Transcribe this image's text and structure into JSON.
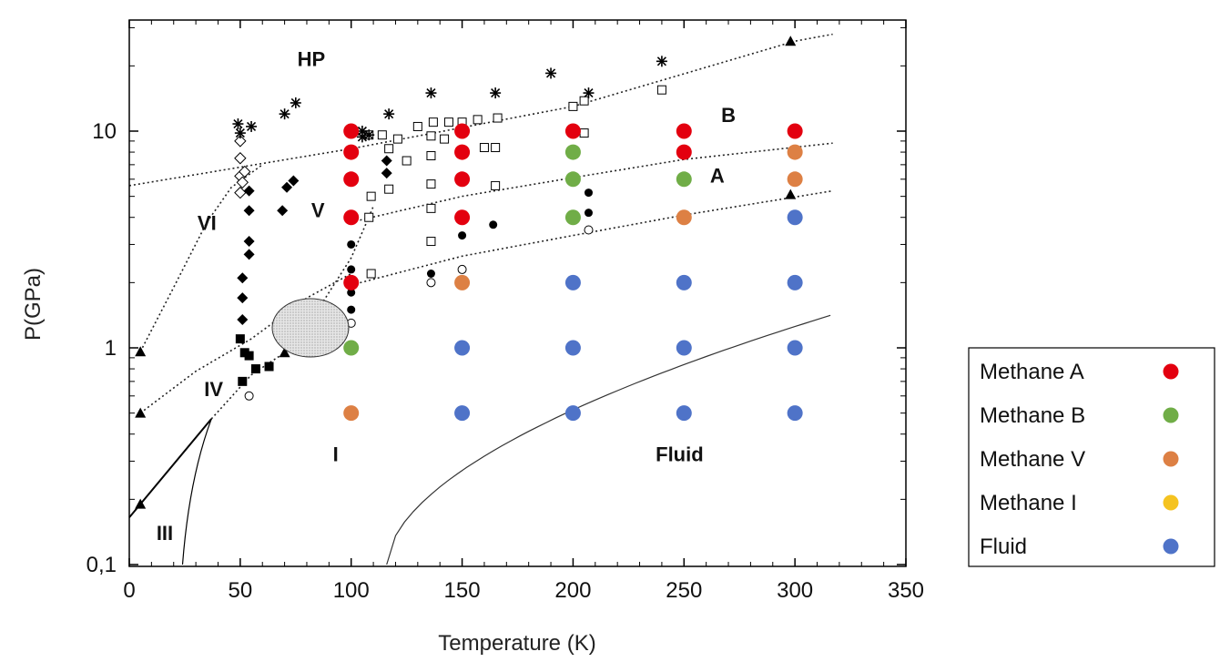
{
  "chart_data": {
    "type": "scatter",
    "title": "",
    "xlabel": "Temperature (K)",
    "ylabel": "P(GPa)",
    "xlim": [
      0,
      350
    ],
    "ylim": [
      0.1,
      30
    ],
    "y_scale": "log",
    "x_ticks": [
      0,
      50,
      100,
      150,
      200,
      250,
      300,
      350
    ],
    "x_tick_labels": [
      "0",
      "50",
      "100",
      "150",
      "200",
      "250",
      "300",
      "350"
    ],
    "y_ticks": [
      0.1,
      1,
      10
    ],
    "y_tick_labels": [
      "0,1",
      "1",
      "10"
    ],
    "grid": false,
    "legend_position": "right",
    "region_labels": [
      {
        "text": "HP",
        "x": 82,
        "y": 20
      },
      {
        "text": "B",
        "x": 270,
        "y": 11
      },
      {
        "text": "A",
        "x": 265,
        "y": 5.8
      },
      {
        "text": "VI",
        "x": 35,
        "y": 3.5
      },
      {
        "text": "V",
        "x": 85,
        "y": 4
      },
      {
        "text": "IV",
        "x": 38,
        "y": 0.6
      },
      {
        "text": "I",
        "x": 93,
        "y": 0.3
      },
      {
        "text": "III",
        "x": 16,
        "y": 0.13
      },
      {
        "text": "Fluid",
        "x": 248,
        "y": 0.3
      }
    ],
    "series": [
      {
        "name": "Methane A",
        "color": "#e3000f",
        "points": [
          [
            100,
            10
          ],
          [
            100,
            8
          ],
          [
            100,
            6
          ],
          [
            100,
            4
          ],
          [
            100,
            2
          ],
          [
            150,
            10
          ],
          [
            150,
            8
          ],
          [
            150,
            6
          ],
          [
            150,
            4
          ],
          [
            200,
            10
          ],
          [
            250,
            10
          ],
          [
            250,
            8
          ],
          [
            300,
            10
          ]
        ]
      },
      {
        "name": "Methane B",
        "color": "#70ad47",
        "points": [
          [
            100,
            1
          ],
          [
            200,
            8
          ],
          [
            200,
            6
          ],
          [
            200,
            4
          ],
          [
            250,
            6
          ]
        ]
      },
      {
        "name": "Methane V",
        "color": "#dd8044",
        "points": [
          [
            100,
            0.5
          ],
          [
            150,
            2
          ],
          [
            250,
            4
          ],
          [
            300,
            8
          ],
          [
            300,
            6
          ]
        ]
      },
      {
        "name": "Methane I",
        "color": "#f5c320",
        "points": []
      },
      {
        "name": "Fluid",
        "color": "#4f73c8",
        "points": [
          [
            150,
            1
          ],
          [
            150,
            0.5
          ],
          [
            200,
            2
          ],
          [
            200,
            1
          ],
          [
            200,
            0.5
          ],
          [
            250,
            2
          ],
          [
            250,
            1
          ],
          [
            250,
            0.5
          ],
          [
            300,
            4
          ],
          [
            300,
            2
          ],
          [
            300,
            1
          ],
          [
            300,
            0.5
          ]
        ]
      }
    ],
    "reference_points": {
      "open_diamond": [
        [
          50,
          9
        ],
        [
          50,
          7.5
        ],
        [
          50,
          6.2
        ],
        [
          50,
          5.2
        ],
        [
          52,
          6.5
        ],
        [
          51,
          5.8
        ]
      ],
      "filled_diamond": [
        [
          54,
          5.3
        ],
        [
          54,
          4.3
        ],
        [
          54,
          3.1
        ],
        [
          54,
          2.7
        ],
        [
          51,
          2.1
        ],
        [
          51,
          1.7
        ],
        [
          51,
          1.35
        ],
        [
          69,
          4.3
        ],
        [
          71,
          5.5
        ],
        [
          74,
          5.9
        ],
        [
          116,
          7.3
        ],
        [
          116,
          6.4
        ]
      ],
      "asterisk": [
        [
          49,
          10.8
        ],
        [
          55,
          10.5
        ],
        [
          50,
          9.8
        ],
        [
          70,
          12
        ],
        [
          75,
          13.5
        ],
        [
          105,
          10
        ],
        [
          105,
          9.4
        ],
        [
          117,
          12
        ],
        [
          136,
          15
        ],
        [
          165,
          15
        ],
        [
          190,
          18.5
        ],
        [
          207,
          15
        ],
        [
          240,
          21
        ],
        [
          108,
          9.6
        ]
      ],
      "open_square": [
        [
          108,
          9.6
        ],
        [
          114,
          9.6
        ],
        [
          117,
          8.3
        ],
        [
          121,
          9.2
        ],
        [
          125,
          7.3
        ],
        [
          130,
          10.5
        ],
        [
          137,
          11
        ],
        [
          144,
          11
        ],
        [
          150,
          11
        ],
        [
          157,
          11.3
        ],
        [
          166,
          11.5
        ],
        [
          136,
          9.5
        ],
        [
          142,
          9.2
        ],
        [
          136,
          7.7
        ],
        [
          136,
          5.7
        ],
        [
          136,
          4.4
        ],
        [
          136,
          3.1
        ],
        [
          165,
          8.4
        ],
        [
          160,
          8.4
        ],
        [
          165,
          5.6
        ],
        [
          117,
          5.4
        ],
        [
          109,
          5
        ],
        [
          108,
          4
        ],
        [
          109,
          2.2
        ],
        [
          200,
          13
        ],
        [
          205,
          13.8
        ],
        [
          205,
          9.8
        ],
        [
          240,
          15.5
        ]
      ],
      "filled_circle": [
        [
          100,
          3
        ],
        [
          100,
          2.3
        ],
        [
          100,
          1.8
        ],
        [
          100,
          1.5
        ],
        [
          136,
          2.2
        ],
        [
          150,
          3.3
        ],
        [
          164,
          3.7
        ],
        [
          207,
          5.2
        ],
        [
          207,
          4.2
        ]
      ],
      "open_circle": [
        [
          100,
          1.3
        ],
        [
          136,
          2
        ],
        [
          150,
          2.3
        ],
        [
          207,
          3.5
        ],
        [
          54,
          0.6
        ]
      ],
      "filled_square": [
        [
          50,
          1.1
        ],
        [
          52,
          0.95
        ],
        [
          54,
          0.92
        ],
        [
          57,
          0.8
        ],
        [
          63,
          0.82
        ],
        [
          51,
          0.7
        ]
      ],
      "filled_triangle": [
        [
          5,
          0.96
        ],
        [
          5,
          0.5
        ],
        [
          5,
          0.19
        ],
        [
          70,
          0.95
        ],
        [
          298,
          26
        ],
        [
          298,
          5.1
        ]
      ]
    },
    "phase_boundaries": [
      {
        "points": [
          [
            0,
            5.6
          ],
          [
            100,
            8.3
          ],
          [
            200,
            13
          ],
          [
            300,
            26
          ],
          [
            317,
            28
          ]
        ]
      },
      {
        "points": [
          [
            100,
            3.8
          ],
          [
            150,
            5
          ],
          [
            200,
            6.1
          ],
          [
            250,
            7.4
          ],
          [
            317,
            8.8
          ]
        ]
      },
      {
        "points": [
          [
            100,
            1.95
          ],
          [
            150,
            2.65
          ],
          [
            200,
            3.3
          ],
          [
            250,
            4.1
          ],
          [
            317,
            5.3
          ]
        ]
      },
      {
        "points": [
          [
            5,
            0.96
          ],
          [
            20,
            1.9
          ],
          [
            35,
            3.8
          ],
          [
            46,
            5.5
          ],
          [
            60,
            7
          ]
        ]
      },
      {
        "points": [
          [
            5,
            0.5
          ],
          [
            30,
            0.78
          ],
          [
            55,
            1.1
          ],
          [
            80,
            1.7
          ],
          [
            100,
            2.2
          ]
        ]
      },
      {
        "points": [
          [
            37,
            0.47
          ],
          [
            55,
            0.75
          ],
          [
            70,
            0.95
          ],
          [
            85,
            1.5
          ],
          [
            100,
            2.6
          ],
          [
            106,
            3.6
          ],
          [
            110,
            4.5
          ]
        ]
      }
    ]
  },
  "legend": {
    "items": [
      {
        "label": "Methane A",
        "color": "#e3000f"
      },
      {
        "label": "Methane B",
        "color": "#70ad47"
      },
      {
        "label": "Methane V",
        "color": "#dd8044"
      },
      {
        "label": "Methane I",
        "color": "#f5c320"
      },
      {
        "label": "Fluid",
        "color": "#4f73c8"
      }
    ]
  }
}
